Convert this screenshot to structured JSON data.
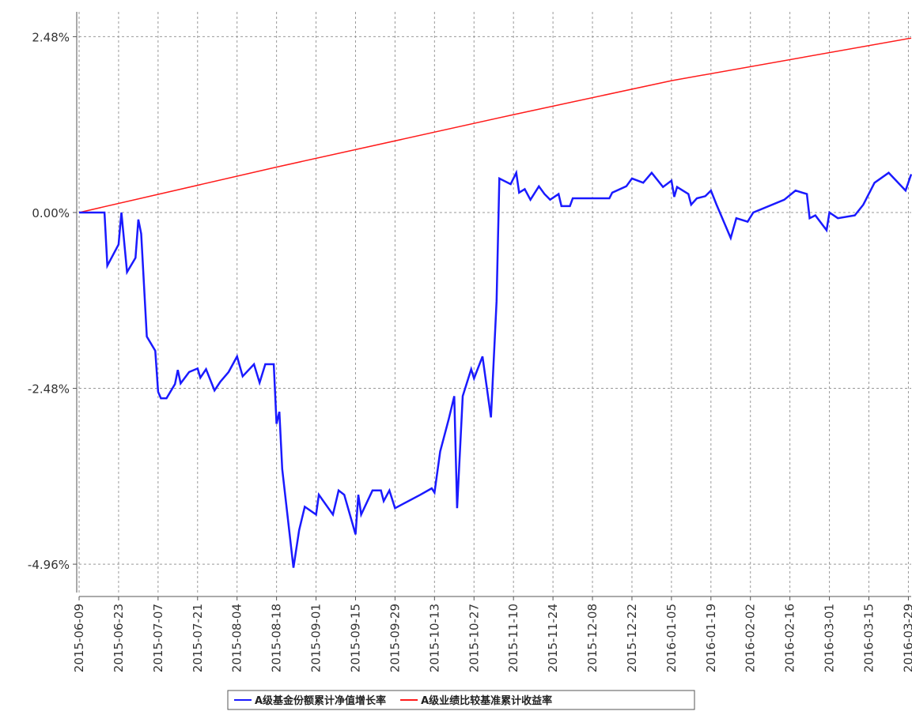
{
  "chart_data": {
    "type": "line",
    "xlim": [
      "2015-06-09",
      "2016-03-30"
    ],
    "ylim": [
      -5.36,
      2.83
    ],
    "xticks": [
      "2015-06-09",
      "2015-06-23",
      "2015-07-07",
      "2015-07-21",
      "2015-08-04",
      "2015-08-18",
      "2015-09-01",
      "2015-09-15",
      "2015-09-29",
      "2015-10-13",
      "2015-10-27",
      "2015-11-10",
      "2015-11-24",
      "2015-12-08",
      "2015-12-22",
      "2016-01-05",
      "2016-01-19",
      "2016-02-02",
      "2016-02-16",
      "2016-03-01",
      "2016-03-15",
      "2016-03-29"
    ],
    "yticks": [
      {
        "value": 2.48,
        "label": "2.48%"
      },
      {
        "value": 0,
        "label": "0.00%"
      },
      {
        "value": -2.48,
        "label": "-2.48%"
      },
      {
        "value": -4.96,
        "label": "-4.96%"
      }
    ],
    "grid": true,
    "legend": "bottom",
    "series": [
      {
        "name": "A级基金份额累计净值增长率",
        "color": "#1a1aff",
        "x": [
          "2015-06-09",
          "2015-06-18",
          "2015-06-19",
          "2015-06-23",
          "2015-06-24",
          "2015-06-26",
          "2015-06-29",
          "2015-06-30",
          "2015-07-01",
          "2015-07-03",
          "2015-07-06",
          "2015-07-07",
          "2015-07-08",
          "2015-07-10",
          "2015-07-13",
          "2015-07-14",
          "2015-07-15",
          "2015-07-18",
          "2015-07-21",
          "2015-07-22",
          "2015-07-24",
          "2015-07-27",
          "2015-07-29",
          "2015-08-01",
          "2015-08-04",
          "2015-08-06",
          "2015-08-10",
          "2015-08-12",
          "2015-08-14",
          "2015-08-17",
          "2015-08-18",
          "2015-08-19",
          "2015-08-20",
          "2015-08-24",
          "2015-08-26",
          "2015-08-28",
          "2015-09-01",
          "2015-09-02",
          "2015-09-07",
          "2015-09-09",
          "2015-09-11",
          "2015-09-15",
          "2015-09-16",
          "2015-09-17",
          "2015-09-21",
          "2015-09-24",
          "2015-09-25",
          "2015-09-27",
          "2015-09-29",
          "2015-10-08",
          "2015-10-12",
          "2015-10-13",
          "2015-10-15",
          "2015-10-18",
          "2015-10-20",
          "2015-10-21",
          "2015-10-23",
          "2015-10-26",
          "2015-10-27",
          "2015-10-30",
          "2015-11-02",
          "2015-11-04",
          "2015-11-05",
          "2015-11-09",
          "2015-11-11",
          "2015-11-12",
          "2015-11-14",
          "2015-11-16",
          "2015-11-19",
          "2015-11-21",
          "2015-11-23",
          "2015-11-26",
          "2015-11-27",
          "2015-11-30",
          "2015-12-01",
          "2015-12-14",
          "2015-12-15",
          "2015-12-20",
          "2015-12-22",
          "2015-12-26",
          "2015-12-29",
          "2016-01-02",
          "2016-01-05",
          "2016-01-06",
          "2016-01-07",
          "2016-01-11",
          "2016-01-12",
          "2016-01-14",
          "2016-01-17",
          "2016-01-19",
          "2016-01-21",
          "2016-01-26",
          "2016-01-28",
          "2016-02-01",
          "2016-02-03",
          "2016-02-14",
          "2016-02-18",
          "2016-02-22",
          "2016-02-23",
          "2016-02-25",
          "2016-02-29",
          "2016-03-01",
          "2016-03-04",
          "2016-03-10",
          "2016-03-13",
          "2016-03-17",
          "2016-03-22",
          "2016-03-28",
          "2016-03-30"
        ],
        "values": [
          0,
          0,
          -0.75,
          -0.45,
          0,
          -0.84,
          -0.64,
          -0.1,
          -0.3,
          -1.75,
          -1.95,
          -2.53,
          -2.62,
          -2.62,
          -2.42,
          -2.22,
          -2.41,
          -2.25,
          -2.2,
          -2.33,
          -2.21,
          -2.51,
          -2.39,
          -2.25,
          -2.03,
          -2.31,
          -2.14,
          -2.4,
          -2.14,
          -2.14,
          -2.98,
          -2.81,
          -3.62,
          -5.01,
          -4.48,
          -4.15,
          -4.26,
          -3.98,
          -4.26,
          -3.92,
          -3.98,
          -4.54,
          -3.98,
          -4.26,
          -3.92,
          -3.92,
          -4.07,
          -3.92,
          -4.17,
          -3.98,
          -3.89,
          -3.95,
          -3.37,
          -2.92,
          -2.59,
          -4.17,
          -2.59,
          -2.21,
          -2.34,
          -2.03,
          -2.89,
          -1.25,
          0.48,
          0.4,
          0.56,
          0.28,
          0.33,
          0.18,
          0.37,
          0.26,
          0.18,
          0.26,
          0.09,
          0.09,
          0.2,
          0.2,
          0.28,
          0.37,
          0.48,
          0.42,
          0.56,
          0.36,
          0.45,
          0.22,
          0.36,
          0.26,
          0.11,
          0.2,
          0.23,
          0.31,
          0.11,
          -0.36,
          -0.08,
          -0.13,
          0,
          0.18,
          0.31,
          0.26,
          -0.08,
          -0.04,
          -0.25,
          0,
          -0.08,
          -0.04,
          0.11,
          0.42,
          0.56,
          0.31,
          0.54
        ]
      },
      {
        "name": "A级业绩比较基准累计收益率",
        "color": "#ff1a1a",
        "x": [
          "2015-06-09",
          "2015-08-18",
          "2015-11-10",
          "2016-01-05",
          "2016-03-30"
        ],
        "values": [
          0,
          0.64,
          1.38,
          1.86,
          2.46
        ]
      }
    ]
  }
}
